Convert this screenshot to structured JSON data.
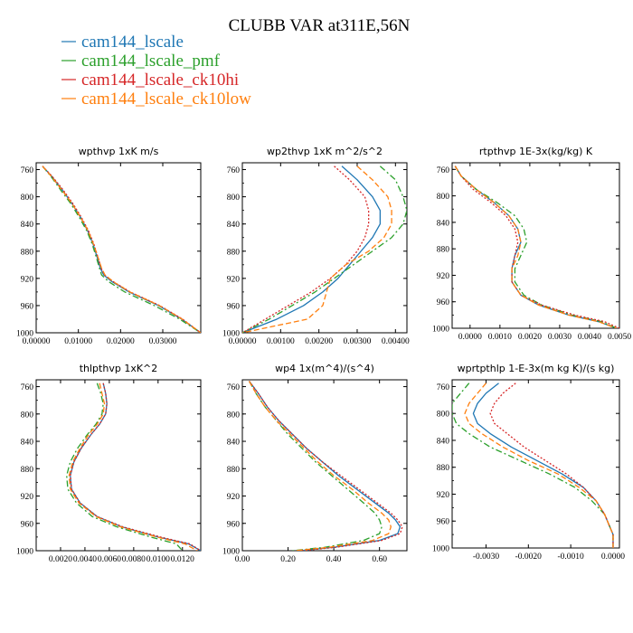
{
  "title": "CLUBB VAR at311E,56N",
  "series": [
    {
      "name": "cam144_lscale",
      "color": "#1f77b4",
      "dash": ""
    },
    {
      "name": "cam144_lscale_pmf",
      "color": "#2ca02c",
      "dash": "7,3,2,3"
    },
    {
      "name": "cam144_lscale_ck10hi",
      "color": "#d62728",
      "dash": "2,2"
    },
    {
      "name": "cam144_lscale_ck10low",
      "color": "#ff7f0e",
      "dash": "6,3"
    }
  ],
  "chart_data": [
    {
      "type": "line",
      "title": "wpthvp  1xK m/s",
      "xlim": [
        0,
        0.039
      ],
      "ylim": [
        1000,
        750
      ],
      "xticks": [
        "0.00000",
        "0.01000",
        "0.02000",
        "0.03000"
      ],
      "xtick_values": [
        0,
        0.01,
        0.02,
        0.03
      ],
      "yticks": [
        "760",
        "800",
        "840",
        "880",
        "920",
        "960",
        "1000"
      ],
      "y": [
        755,
        770,
        790,
        810,
        830,
        850,
        870,
        890,
        905,
        915,
        925,
        940,
        960,
        980,
        1000
      ],
      "series": [
        {
          "name": "cam144_lscale",
          "values": [
            0.0015,
            0.0037,
            0.0062,
            0.0085,
            0.0105,
            0.0122,
            0.0135,
            0.0145,
            0.0152,
            0.016,
            0.018,
            0.022,
            0.029,
            0.0345,
            0.039
          ]
        },
        {
          "name": "cam144_lscale_pmf",
          "values": [
            0.0015,
            0.0035,
            0.0058,
            0.0082,
            0.0102,
            0.012,
            0.0133,
            0.0143,
            0.015,
            0.0155,
            0.0172,
            0.021,
            0.028,
            0.034,
            0.039
          ]
        },
        {
          "name": "cam144_lscale_ck10hi",
          "values": [
            0.0015,
            0.0038,
            0.0064,
            0.0087,
            0.0107,
            0.0124,
            0.0137,
            0.0147,
            0.0154,
            0.0162,
            0.0183,
            0.0223,
            0.0293,
            0.0347,
            0.039
          ]
        },
        {
          "name": "cam144_lscale_ck10low",
          "values": [
            0.0015,
            0.0036,
            0.0061,
            0.0085,
            0.0105,
            0.0123,
            0.0136,
            0.0147,
            0.0155,
            0.0163,
            0.0183,
            0.0222,
            0.0292,
            0.0346,
            0.039
          ]
        }
      ]
    },
    {
      "type": "line",
      "title": "wp2thvp  1xK m^2/s^2",
      "xlim": [
        0,
        0.0043
      ],
      "ylim": [
        1000,
        750
      ],
      "xticks": [
        "0.00000",
        "0.00100",
        "0.00200",
        "0.00300",
        "0.00400"
      ],
      "xtick_values": [
        0,
        0.001,
        0.002,
        0.003,
        0.004
      ],
      "yticks": [
        "760",
        "800",
        "840",
        "880",
        "920",
        "960",
        "1000"
      ],
      "y": [
        755,
        775,
        800,
        820,
        840,
        860,
        880,
        900,
        920,
        940,
        960,
        980,
        1000
      ],
      "series": [
        {
          "name": "cam144_lscale",
          "values": [
            0.0026,
            0.003,
            0.0034,
            0.0036,
            0.0036,
            0.0034,
            0.0031,
            0.0028,
            0.0025,
            0.0021,
            0.0016,
            0.0009,
            0.0
          ]
        },
        {
          "name": "cam144_lscale_pmf",
          "values": [
            0.0036,
            0.004,
            0.0042,
            0.0043,
            0.0042,
            0.0039,
            0.0034,
            0.0029,
            0.0024,
            0.0019,
            0.0013,
            0.0007,
            0.0
          ]
        },
        {
          "name": "cam144_lscale_ck10hi",
          "values": [
            0.0024,
            0.0028,
            0.0032,
            0.0033,
            0.0033,
            0.0032,
            0.003,
            0.0027,
            0.0023,
            0.0018,
            0.0012,
            0.0006,
            0.0
          ]
        },
        {
          "name": "cam144_lscale_ck10low",
          "values": [
            0.003,
            0.0034,
            0.0038,
            0.0039,
            0.0039,
            0.0037,
            0.0033,
            0.0027,
            0.0023,
            0.0022,
            0.0021,
            0.0017,
            0.0
          ]
        }
      ]
    },
    {
      "type": "line",
      "title": "rtpthvp  1E-3x(kg/kg) K",
      "xlim": [
        -0.0006,
        0.005
      ],
      "ylim": [
        1000,
        750
      ],
      "xticks": [
        "0.0000",
        "0.0010",
        "0.0020",
        "0.0030",
        "0.0040",
        "0.0050"
      ],
      "xtick_values": [
        0,
        0.001,
        0.002,
        0.003,
        0.004,
        0.005
      ],
      "yticks": [
        "760",
        "800",
        "840",
        "880",
        "920",
        "960",
        "1000"
      ],
      "y": [
        755,
        770,
        790,
        810,
        830,
        850,
        870,
        890,
        910,
        930,
        950,
        965,
        980,
        990,
        1000
      ],
      "series": [
        {
          "name": "cam144_lscale",
          "values": [
            -0.0005,
            -0.0003,
            0.0002,
            0.0008,
            0.0013,
            0.0016,
            0.0017,
            0.0015,
            0.0014,
            0.0014,
            0.0017,
            0.0023,
            0.0033,
            0.0043,
            0.0049
          ]
        },
        {
          "name": "cam144_lscale_pmf",
          "values": [
            -0.0005,
            -0.0003,
            0.0002,
            0.0009,
            0.0015,
            0.0018,
            0.0019,
            0.0017,
            0.0015,
            0.0015,
            0.0018,
            0.0024,
            0.0034,
            0.0044,
            0.0049
          ]
        },
        {
          "name": "cam144_lscale_ck10hi",
          "values": [
            -0.0005,
            -0.0003,
            0.0001,
            0.0007,
            0.0012,
            0.0015,
            0.0016,
            0.0015,
            0.0014,
            0.0014,
            0.0017,
            0.0024,
            0.0035,
            0.0045,
            0.005
          ]
        },
        {
          "name": "cam144_lscale_ck10low",
          "values": [
            -0.0005,
            -0.0003,
            0.0002,
            0.0008,
            0.0013,
            0.0016,
            0.0017,
            0.0016,
            0.0014,
            0.0014,
            0.0017,
            0.0023,
            0.0033,
            0.0043,
            0.0049
          ]
        }
      ]
    },
    {
      "type": "line",
      "title": "thlpthvp  1xK^2",
      "xlim": [
        0,
        0.0135
      ],
      "ylim": [
        1000,
        750
      ],
      "xticks": [
        "0.0020",
        "0.0040",
        "0.0060",
        "0.0080",
        "0.0100",
        "0.0120"
      ],
      "xtick_values": [
        0.002,
        0.004,
        0.006,
        0.008,
        0.01,
        0.012
      ],
      "yticks": [
        "760",
        "800",
        "840",
        "880",
        "920",
        "960",
        "1000"
      ],
      "y": [
        755,
        770,
        785,
        800,
        815,
        830,
        850,
        870,
        890,
        910,
        930,
        950,
        965,
        980,
        990,
        1000
      ],
      "series": [
        {
          "name": "cam144_lscale",
          "values": [
            0.0055,
            0.0057,
            0.0058,
            0.0057,
            0.0052,
            0.0045,
            0.0037,
            0.0031,
            0.0028,
            0.0029,
            0.0036,
            0.005,
            0.007,
            0.01,
            0.0125,
            0.0135
          ]
        },
        {
          "name": "cam144_lscale_pmf",
          "values": [
            0.005,
            0.0053,
            0.0055,
            0.0054,
            0.0049,
            0.0042,
            0.0034,
            0.0028,
            0.0025,
            0.0026,
            0.0033,
            0.0046,
            0.0066,
            0.0094,
            0.0115,
            0.012
          ]
        },
        {
          "name": "cam144_lscale_ck10hi",
          "values": [
            0.0055,
            0.0057,
            0.0058,
            0.0057,
            0.0052,
            0.0045,
            0.0037,
            0.0031,
            0.0028,
            0.0029,
            0.0036,
            0.005,
            0.0071,
            0.0102,
            0.0126,
            0.0135
          ]
        },
        {
          "name": "cam144_lscale_ck10low",
          "values": [
            0.0052,
            0.0054,
            0.0056,
            0.0055,
            0.005,
            0.0043,
            0.0036,
            0.003,
            0.0027,
            0.0028,
            0.0035,
            0.0049,
            0.0069,
            0.0099,
            0.0122,
            0.0132
          ]
        }
      ]
    },
    {
      "type": "line",
      "title": "wp4  1x(m^4)/(s^4)",
      "xlim": [
        0,
        0.72
      ],
      "ylim": [
        1000,
        750
      ],
      "xticks": [
        "0.00",
        "0.20",
        "0.40",
        "0.60"
      ],
      "xtick_values": [
        0,
        0.2,
        0.4,
        0.6
      ],
      "yticks": [
        "760",
        "800",
        "840",
        "880",
        "920",
        "960",
        "1000"
      ],
      "y": [
        752,
        770,
        790,
        810,
        830,
        850,
        870,
        890,
        910,
        930,
        945,
        955,
        965,
        975,
        985,
        995,
        1000
      ],
      "series": [
        {
          "name": "cam144_lscale",
          "values": [
            0.03,
            0.07,
            0.11,
            0.16,
            0.22,
            0.28,
            0.35,
            0.42,
            0.5,
            0.58,
            0.64,
            0.67,
            0.69,
            0.68,
            0.6,
            0.4,
            0.25
          ]
        },
        {
          "name": "cam144_lscale_pmf",
          "values": [
            0.03,
            0.06,
            0.1,
            0.15,
            0.2,
            0.26,
            0.32,
            0.39,
            0.46,
            0.53,
            0.58,
            0.6,
            0.61,
            0.6,
            0.53,
            0.36,
            0.22
          ]
        },
        {
          "name": "cam144_lscale_ck10hi",
          "values": [
            0.03,
            0.07,
            0.11,
            0.16,
            0.22,
            0.28,
            0.35,
            0.43,
            0.51,
            0.59,
            0.65,
            0.68,
            0.7,
            0.69,
            0.61,
            0.41,
            0.26
          ]
        },
        {
          "name": "cam144_lscale_ck10low",
          "values": [
            0.03,
            0.06,
            0.1,
            0.15,
            0.21,
            0.27,
            0.33,
            0.4,
            0.48,
            0.55,
            0.61,
            0.64,
            0.65,
            0.64,
            0.57,
            0.38,
            0.23
          ]
        }
      ]
    },
    {
      "type": "line",
      "title": "wprtpthlp  1-E-3x(m kg K)/(s kg)",
      "xlim": [
        -0.0038,
        0.00015
      ],
      "ylim": [
        1000,
        750
      ],
      "xticks": [
        "-0.0030",
        "-0.0020",
        "-0.0010",
        "0.0000"
      ],
      "xtick_values": [
        -0.003,
        -0.002,
        -0.001,
        0
      ],
      "yticks": [
        "760",
        "800",
        "840",
        "880",
        "920",
        "960",
        "1000"
      ],
      "y": [
        755,
        770,
        785,
        800,
        815,
        830,
        850,
        870,
        890,
        910,
        930,
        950,
        965,
        980,
        990,
        1000
      ],
      "series": [
        {
          "name": "cam144_lscale",
          "values": [
            -0.0027,
            -0.003,
            -0.0032,
            -0.0033,
            -0.0032,
            -0.0029,
            -0.0024,
            -0.0018,
            -0.0012,
            -0.0007,
            -0.0004,
            -0.0002,
            -0.0001,
            0.0,
            0.0,
            0.0
          ]
        },
        {
          "name": "cam144_lscale_pmf",
          "values": [
            -0.0034,
            -0.0036,
            -0.0038,
            -0.0038,
            -0.0037,
            -0.0034,
            -0.0029,
            -0.0022,
            -0.0015,
            -0.0009,
            -0.0005,
            -0.0002,
            -0.0001,
            0.0,
            0.0,
            0.0
          ]
        },
        {
          "name": "cam144_lscale_ck10hi",
          "values": [
            -0.0023,
            -0.0026,
            -0.0028,
            -0.0029,
            -0.0028,
            -0.0025,
            -0.0021,
            -0.0016,
            -0.0011,
            -0.0007,
            -0.0004,
            -0.0002,
            -0.0001,
            0.0,
            0.0,
            0.0
          ]
        },
        {
          "name": "cam144_lscale_ck10low",
          "values": [
            -0.003,
            -0.0032,
            -0.0034,
            -0.0035,
            -0.0034,
            -0.0031,
            -0.0026,
            -0.002,
            -0.0013,
            -0.0008,
            -0.0004,
            -0.0002,
            -0.0001,
            0.0,
            0.0,
            0.0
          ]
        }
      ]
    }
  ]
}
